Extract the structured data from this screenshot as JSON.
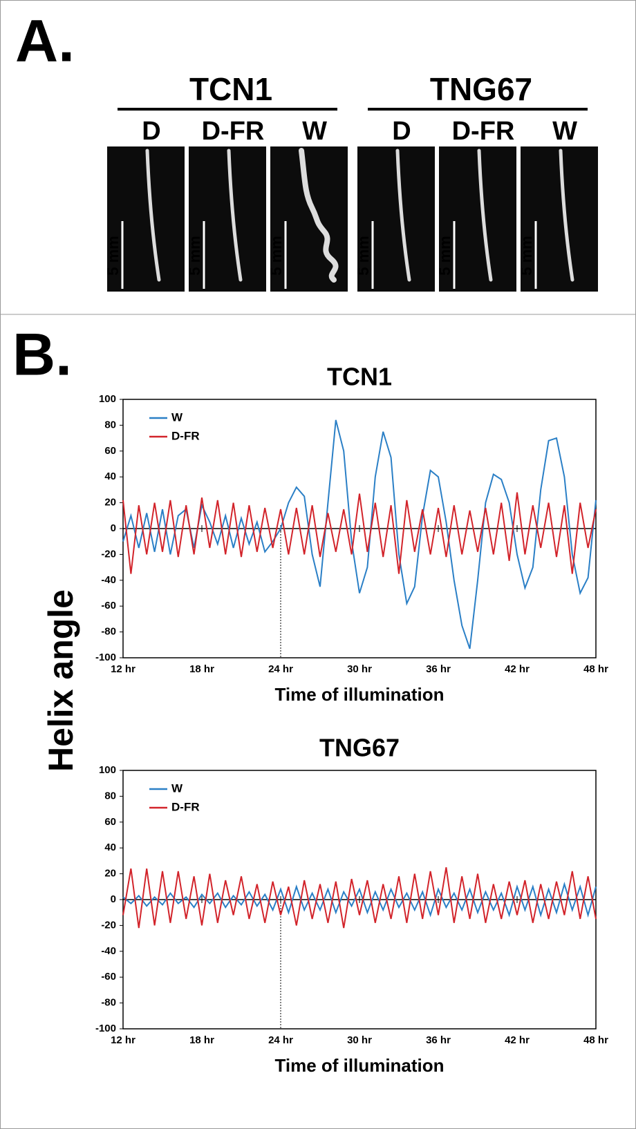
{
  "panel_a": {
    "label": "A.",
    "scale_bar": "5 mm",
    "groups": [
      {
        "name": "TCN1",
        "conditions": [
          "D",
          "D-FR",
          "W"
        ]
      },
      {
        "name": "TNG67",
        "conditions": [
          "D",
          "D-FR",
          "W"
        ]
      }
    ]
  },
  "panel_b": {
    "label": "B.",
    "y_label": "Helix angle"
  },
  "chart_data": [
    {
      "type": "line",
      "title": "TCN1",
      "x_label": "Time of illumination",
      "legend": "upper left",
      "vline": 24,
      "xlim": [
        12,
        48
      ],
      "xticks": [
        {
          "value": 12,
          "label": "12 hr"
        },
        {
          "value": 18,
          "label": "18 hr"
        },
        {
          "value": 24,
          "label": "24 hr"
        },
        {
          "value": 30,
          "label": "30 hr"
        },
        {
          "value": 36,
          "label": "36 hr"
        },
        {
          "value": 42,
          "label": "42 hr"
        },
        {
          "value": 48,
          "label": "48 hr"
        }
      ],
      "ylim": [
        -100,
        100
      ],
      "yticks": [
        -100,
        -80,
        -60,
        -40,
        -20,
        0,
        20,
        40,
        60,
        80,
        100
      ],
      "x": [
        12,
        12.6,
        13.2,
        13.8,
        14.4,
        15,
        15.6,
        16.2,
        16.8,
        17.4,
        18,
        18.6,
        19.2,
        19.8,
        20.4,
        21,
        21.6,
        22.2,
        22.8,
        23.4,
        24,
        24.6,
        25.2,
        25.8,
        26.4,
        27,
        27.6,
        28.2,
        28.8,
        29.4,
        30,
        30.6,
        31.2,
        31.8,
        32.4,
        33,
        33.6,
        34.2,
        34.8,
        35.4,
        36,
        36.6,
        37.2,
        37.8,
        38.4,
        39,
        39.6,
        40.2,
        40.8,
        41.4,
        42,
        42.6,
        43.2,
        43.8,
        44.4,
        45,
        45.6,
        46.2,
        46.8,
        47.4,
        48
      ],
      "series": [
        {
          "name": "W",
          "color": "#2a7fc6",
          "values": [
            -10,
            10,
            -15,
            12,
            -18,
            15,
            -20,
            10,
            15,
            -15,
            18,
            5,
            -12,
            10,
            -15,
            8,
            -12,
            5,
            -18,
            -10,
            0,
            20,
            32,
            25,
            -20,
            -45,
            20,
            84,
            60,
            -10,
            -50,
            -30,
            40,
            75,
            55,
            -20,
            -58,
            -45,
            10,
            45,
            40,
            5,
            -40,
            -75,
            -93,
            -40,
            20,
            42,
            38,
            20,
            -20,
            -46,
            -30,
            30,
            68,
            70,
            40,
            -20,
            -50,
            -38,
            22
          ]
        },
        {
          "name": "D-FR",
          "color": "#d2232a",
          "values": [
            22,
            -35,
            18,
            -20,
            20,
            -18,
            22,
            -22,
            18,
            -20,
            24,
            -15,
            22,
            -20,
            20,
            -22,
            18,
            -18,
            16,
            -15,
            15,
            -20,
            16,
            -20,
            18,
            -22,
            12,
            -18,
            15,
            -20,
            27,
            -18,
            20,
            -22,
            18,
            -35,
            22,
            -18,
            15,
            -20,
            16,
            -22,
            18,
            -20,
            14,
            -18,
            16,
            -20,
            20,
            -25,
            28,
            -20,
            18,
            -15,
            20,
            -22,
            18,
            -35,
            20,
            -15,
            15
          ]
        }
      ]
    },
    {
      "type": "line",
      "title": "TNG67",
      "x_label": "Time of illumination",
      "legend": "upper left",
      "vline": 24,
      "xlim": [
        12,
        48
      ],
      "xticks": [
        {
          "value": 12,
          "label": "12 hr"
        },
        {
          "value": 18,
          "label": "18 hr"
        },
        {
          "value": 24,
          "label": "24 hr"
        },
        {
          "value": 30,
          "label": "30 hr"
        },
        {
          "value": 36,
          "label": "36 hr"
        },
        {
          "value": 42,
          "label": "42 hr"
        },
        {
          "value": 48,
          "label": "48 hr"
        }
      ],
      "ylim": [
        -100,
        100
      ],
      "yticks": [
        -100,
        -80,
        -60,
        -40,
        -20,
        0,
        20,
        40,
        60,
        80,
        100
      ],
      "x": [
        12,
        12.6,
        13.2,
        13.8,
        14.4,
        15,
        15.6,
        16.2,
        16.8,
        17.4,
        18,
        18.6,
        19.2,
        19.8,
        20.4,
        21,
        21.6,
        22.2,
        22.8,
        23.4,
        24,
        24.6,
        25.2,
        25.8,
        26.4,
        27,
        27.6,
        28.2,
        28.8,
        29.4,
        30,
        30.6,
        31.2,
        31.8,
        32.4,
        33,
        33.6,
        34.2,
        34.8,
        35.4,
        36,
        36.6,
        37.2,
        37.8,
        38.4,
        39,
        39.6,
        40.2,
        40.8,
        41.4,
        42,
        42.6,
        43.2,
        43.8,
        44.4,
        45,
        45.6,
        46.2,
        46.8,
        47.4,
        48
      ],
      "series": [
        {
          "name": "W",
          "color": "#2a7fc6",
          "values": [
            2,
            -3,
            3,
            -5,
            2,
            -4,
            5,
            -3,
            2,
            -6,
            4,
            -3,
            5,
            -6,
            3,
            -4,
            6,
            -5,
            4,
            -8,
            8,
            -10,
            10,
            -8,
            5,
            -8,
            8,
            -10,
            6,
            -5,
            8,
            -10,
            6,
            -8,
            8,
            -6,
            5,
            -8,
            6,
            -12,
            8,
            -6,
            5,
            -8,
            8,
            -10,
            6,
            -8,
            5,
            -12,
            10,
            -8,
            10,
            -12,
            8,
            -10,
            12,
            -8,
            10,
            -12,
            10
          ]
        },
        {
          "name": "D-FR",
          "color": "#d2232a",
          "values": [
            -12,
            24,
            -22,
            24,
            -20,
            22,
            -18,
            22,
            -15,
            18,
            -20,
            20,
            -18,
            15,
            -12,
            18,
            -15,
            12,
            -18,
            14,
            -12,
            10,
            -20,
            15,
            -15,
            12,
            -18,
            14,
            -22,
            16,
            -12,
            15,
            -18,
            12,
            -15,
            18,
            -18,
            20,
            -15,
            22,
            -12,
            25,
            -18,
            18,
            -15,
            20,
            -18,
            12,
            -15,
            14,
            -12,
            15,
            -18,
            12,
            -15,
            14,
            -12,
            22,
            -15,
            18,
            -15
          ]
        }
      ]
    }
  ]
}
